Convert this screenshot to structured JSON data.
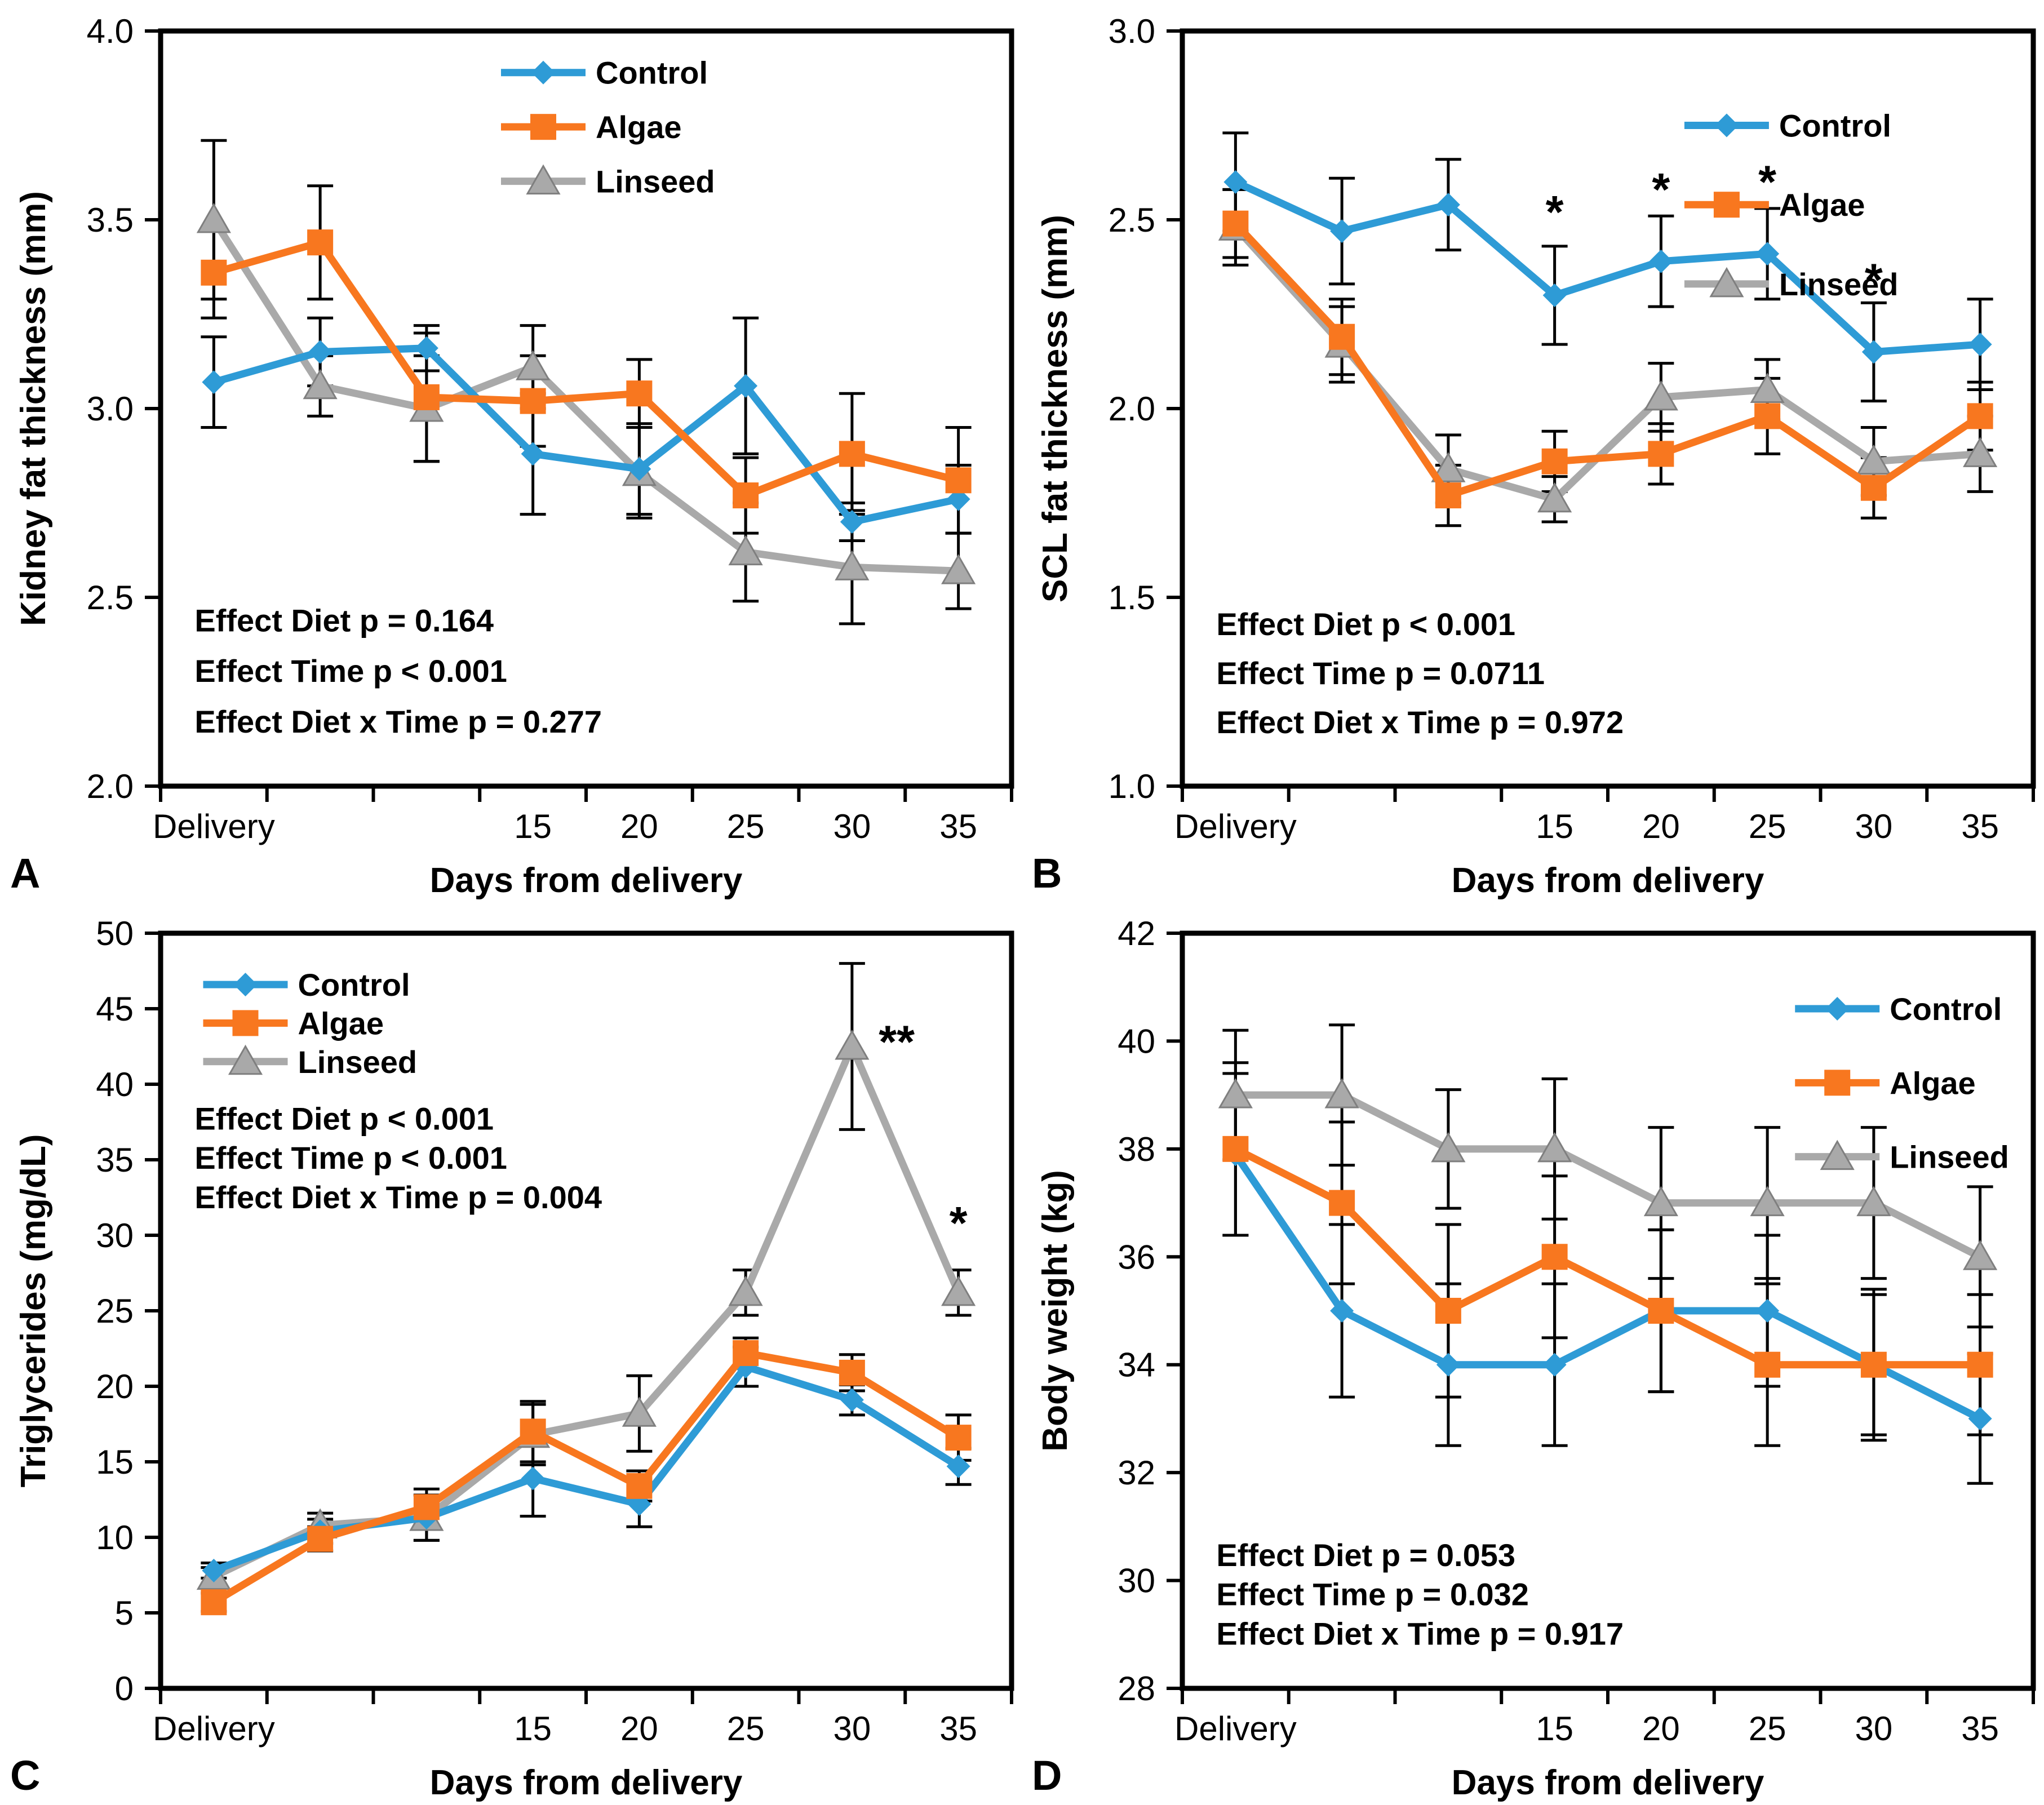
{
  "figure": {
    "x_axis_title": "Days from delivery",
    "x_tick_labels": [
      "Delivery",
      "",
      "",
      "15",
      "20",
      "25",
      "30",
      "35"
    ],
    "colors": {
      "control": "#2E9BD6",
      "algae": "#F8771F",
      "linseed": "#A9A9A9",
      "linseed_edge": "#7F7F7F",
      "axis": "#000000"
    },
    "legend": [
      {
        "name": "Control",
        "marker": "diamond"
      },
      {
        "name": "Algae",
        "marker": "square"
      },
      {
        "name": "Linseed",
        "marker": "triangle"
      }
    ]
  },
  "chart_data": [
    {
      "panel": "A",
      "type": "line",
      "ylabel": "Kidney fat thickness  (mm)",
      "xlabel": "Days from delivery",
      "ylim": [
        2.0,
        4.0
      ],
      "ytick_labels": [
        "2.0",
        "2.5",
        "3.0",
        "3.5",
        "4.0"
      ],
      "categories": [
        "Delivery",
        "",
        "",
        "15",
        "20",
        "25",
        "30",
        "35"
      ],
      "legend_position": "top-right",
      "series": [
        {
          "name": "Control",
          "marker": "diamond",
          "values": [
            3.07,
            3.15,
            3.16,
            2.88,
            2.84,
            3.06,
            2.7,
            2.76
          ],
          "errors": [
            0.12,
            0.09,
            0.06,
            0.16,
            0.12,
            0.18,
            0.05,
            0.09
          ]
        },
        {
          "name": "Algae",
          "marker": "square",
          "values": [
            3.36,
            3.44,
            3.03,
            3.02,
            3.04,
            2.77,
            2.88,
            2.81
          ],
          "errors": [
            0.12,
            0.15,
            0.17,
            0.12,
            0.09,
            0.1,
            0.16,
            0.14
          ]
        },
        {
          "name": "Linseed",
          "marker": "triangle",
          "values": [
            3.5,
            3.06,
            3.0,
            3.11,
            2.83,
            2.62,
            2.58,
            2.57
          ],
          "errors": [
            0.21,
            0.08,
            0.14,
            0.11,
            0.12,
            0.13,
            0.15,
            0.1
          ]
        }
      ],
      "stats": [
        "Effect Diet p = 0.164",
        "Effect Time p < 0.001",
        "Effect Diet x Time p = 0.277"
      ],
      "annotations": []
    },
    {
      "panel": "B",
      "type": "line",
      "ylabel": "SCL fat thickness  (mm)",
      "xlabel": "Days from delivery",
      "ylim": [
        1.0,
        3.0
      ],
      "ytick_labels": [
        "1.0",
        "1.5",
        "2.0",
        "2.5",
        "3.0"
      ],
      "categories": [
        "Delivery",
        "",
        "",
        "15",
        "20",
        "25",
        "30",
        "35"
      ],
      "legend_position": "top-right",
      "series": [
        {
          "name": "Control",
          "marker": "diamond",
          "values": [
            2.6,
            2.47,
            2.54,
            2.3,
            2.39,
            2.41,
            2.15,
            2.17
          ],
          "errors": [
            0.13,
            0.14,
            0.12,
            0.13,
            0.12,
            0.12,
            0.13,
            0.12
          ]
        },
        {
          "name": "Algae",
          "marker": "square",
          "values": [
            2.49,
            2.19,
            1.77,
            1.86,
            1.88,
            1.98,
            1.79,
            1.98
          ],
          "errors": [
            0.09,
            0.1,
            0.08,
            0.08,
            0.08,
            0.1,
            0.08,
            0.09
          ]
        },
        {
          "name": "Linseed",
          "marker": "triangle",
          "values": [
            2.48,
            2.17,
            1.84,
            1.76,
            2.03,
            2.05,
            1.86,
            1.88
          ],
          "errors": [
            0.1,
            0.1,
            0.09,
            0.06,
            0.09,
            0.08,
            0.09,
            0.1
          ]
        }
      ],
      "stats": [
        "Effect Diet p < 0.001",
        "Effect Time p = 0.0711",
        "Effect Diet x Time p = 0.972"
      ],
      "annotations": [
        {
          "x_index": 3,
          "x_offset": 0,
          "y": 2.52,
          "text": "*"
        },
        {
          "x_index": 4,
          "x_offset": 0,
          "y": 2.58,
          "text": "*"
        },
        {
          "x_index": 5,
          "x_offset": 0,
          "y": 2.6,
          "text": "*"
        },
        {
          "x_index": 6,
          "x_offset": 0,
          "y": 2.34,
          "text": "*"
        }
      ]
    },
    {
      "panel": "C",
      "type": "line",
      "ylabel": "Triglycerides  (mg/dL)",
      "xlabel": "Days from delivery",
      "ylim": [
        0,
        50
      ],
      "ytick_labels": [
        "0",
        "5",
        "10",
        "15",
        "20",
        "25",
        "30",
        "35",
        "40",
        "45",
        "50"
      ],
      "categories": [
        "Delivery",
        "",
        "",
        "15",
        "20",
        "25",
        "30",
        "35"
      ],
      "legend_position": "top-left",
      "series": [
        {
          "name": "Control",
          "marker": "diamond",
          "values": [
            7.8,
            10.4,
            11.3,
            13.9,
            12.2,
            21.3,
            19.1,
            14.7
          ],
          "errors": [
            0.5,
            0.8,
            1.5,
            2.5,
            1.5,
            1.3,
            1.0,
            1.2
          ]
        },
        {
          "name": "Algae",
          "marker": "square",
          "values": [
            5.7,
            9.9,
            12.0,
            17.0,
            13.4,
            22.2,
            20.9,
            16.6
          ],
          "errors": [
            0.6,
            0.8,
            1.2,
            2.0,
            1.0,
            1.0,
            1.2,
            1.5
          ]
        },
        {
          "name": "Linseed",
          "marker": "triangle",
          "values": [
            7.4,
            10.8,
            11.3,
            16.8,
            18.2,
            26.2,
            42.5,
            26.2
          ],
          "errors": [
            0.6,
            0.8,
            1.5,
            2.0,
            2.5,
            1.5,
            5.5,
            1.5
          ]
        }
      ],
      "stats": [
        "Effect Diet p < 0.001",
        "Effect Time p < 0.001",
        "Effect Diet x Time p = 0.004"
      ],
      "annotations": [
        {
          "x_index": 6,
          "x_offset": 0.42,
          "y": 42.8,
          "text": "**"
        },
        {
          "x_index": 7,
          "x_offset": 0.0,
          "y": 30.8,
          "text": "*"
        }
      ]
    },
    {
      "panel": "D",
      "type": "line",
      "ylabel": "Body weight  (kg)",
      "xlabel": "Days from delivery",
      "ylim": [
        28,
        42
      ],
      "ytick_labels": [
        "28",
        "30",
        "32",
        "34",
        "36",
        "38",
        "40",
        "42"
      ],
      "categories": [
        "Delivery",
        "",
        "",
        "15",
        "20",
        "25",
        "30",
        "35"
      ],
      "legend_position": "top-right",
      "series": [
        {
          "name": "Control",
          "marker": "diamond",
          "values": [
            37.9,
            35.0,
            34.0,
            34.0,
            35.0,
            35.0,
            34.0,
            33.0
          ],
          "errors": [
            1.5,
            1.6,
            1.5,
            1.5,
            1.5,
            1.4,
            1.3,
            1.2
          ]
        },
        {
          "name": "Algae",
          "marker": "square",
          "values": [
            38.0,
            37.0,
            35.0,
            36.0,
            35.0,
            34.0,
            34.0,
            34.0
          ],
          "errors": [
            1.6,
            1.5,
            1.6,
            1.5,
            1.5,
            1.5,
            1.4,
            1.3
          ]
        },
        {
          "name": "Linseed",
          "marker": "triangle",
          "values": [
            39.0,
            39.0,
            38.0,
            38.0,
            37.0,
            37.0,
            37.0,
            36.0
          ],
          "errors": [
            1.2,
            1.3,
            1.1,
            1.3,
            1.4,
            1.4,
            1.4,
            1.3
          ]
        }
      ],
      "stats": [
        "Effect Diet p = 0.053",
        "Effect Time p = 0.032",
        "Effect Diet x Time p = 0.917"
      ],
      "annotations": []
    }
  ]
}
